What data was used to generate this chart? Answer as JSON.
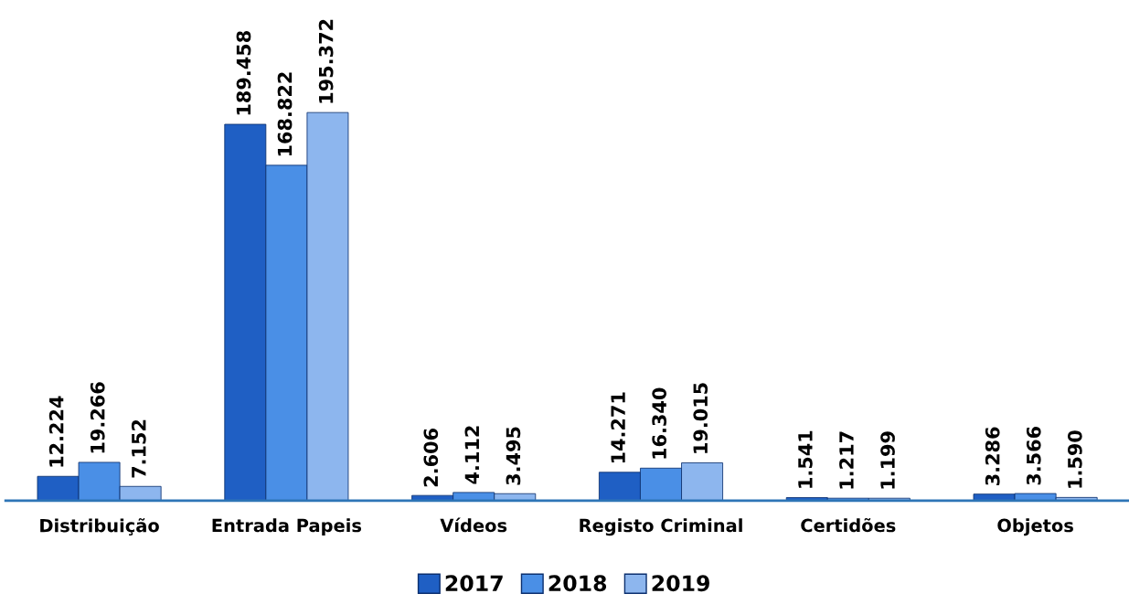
{
  "chart_data": {
    "type": "bar",
    "categories": [
      "Distribuição",
      "Entrada Papeis",
      "Vídeos",
      "Registo Criminal",
      "Certidões",
      "Objetos"
    ],
    "series": [
      {
        "name": "2017",
        "color": "#1f5fc4",
        "values": [
          12224,
          189458,
          2606,
          14271,
          1541,
          3286
        ],
        "value_labels": [
          "12.224",
          "189.458",
          "2.606",
          "14.271",
          "1.541",
          "3.286"
        ]
      },
      {
        "name": "2018",
        "color": "#4a8fe6",
        "values": [
          19266,
          168822,
          4112,
          16340,
          1217,
          3566
        ],
        "value_labels": [
          "19.266",
          "168.822",
          "4.112",
          "16.340",
          "1.217",
          "3.566"
        ]
      },
      {
        "name": "2019",
        "color": "#8db6ee",
        "values": [
          7152,
          195372,
          3495,
          19015,
          1199,
          1590
        ],
        "value_labels": [
          "7.152",
          "195.372",
          "3.495",
          "19.015",
          "1.199",
          "1.590"
        ]
      }
    ],
    "legend": "bottom",
    "grid": false
  }
}
